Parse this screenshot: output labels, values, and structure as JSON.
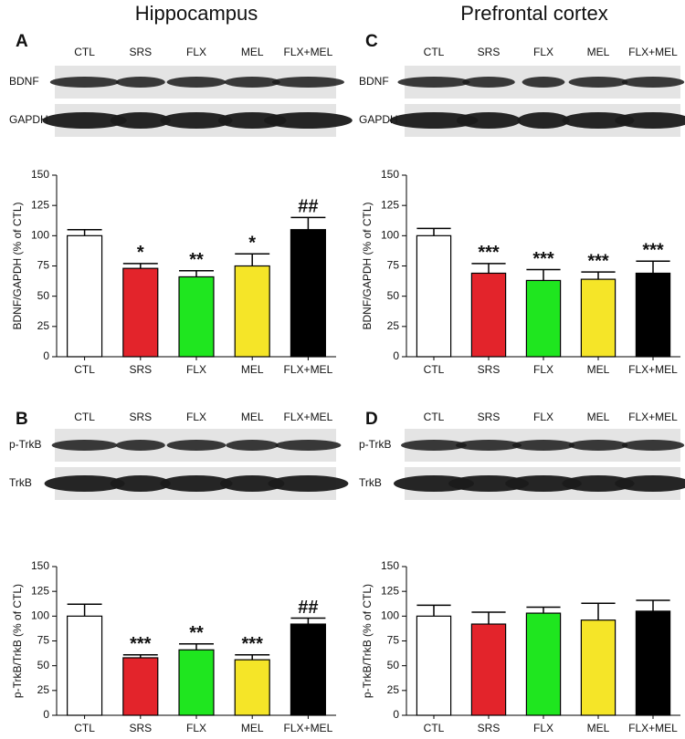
{
  "headings": [
    "Hippocampus",
    "Prefrontal cortex"
  ],
  "panels": [
    {
      "letter": "A",
      "lanes": [
        "CTL",
        "SRS",
        "FLX",
        "MEL",
        "FLX+MEL"
      ],
      "bands": [
        "BDNF",
        "GAPDH"
      ]
    },
    {
      "letter": "B",
      "lanes": [
        "CTL",
        "SRS",
        "FLX",
        "MEL",
        "FLX+MEL"
      ],
      "bands": [
        "p-TrkB",
        "TrkB"
      ]
    },
    {
      "letter": "C",
      "lanes": [
        "CTL",
        "SRS",
        "FLX",
        "MEL",
        "FLX+MEL"
      ],
      "bands": [
        "BDNF",
        "GAPDH"
      ]
    },
    {
      "letter": "D",
      "lanes": [
        "CTL",
        "SRS",
        "FLX",
        "MEL",
        "FLX+MEL"
      ],
      "bands": [
        "p-TrkB",
        "TrkB"
      ]
    }
  ],
  "chart_data": [
    {
      "type": "bar",
      "ylabel": "BDNF/GAPDH (% of CTL)",
      "categories": [
        "CTL",
        "SRS",
        "FLX",
        "MEL",
        "FLX+MEL"
      ],
      "values": [
        100,
        73,
        66,
        75,
        105
      ],
      "errors": [
        5,
        4,
        5,
        10,
        10
      ],
      "annotations": [
        "",
        "*",
        "**",
        "*",
        "##"
      ],
      "colors": [
        "#ffffff",
        "#e3242b",
        "#1fe61f",
        "#f5e528",
        "#000000"
      ],
      "ylim": [
        0,
        150
      ],
      "yticks": [
        0,
        25,
        50,
        75,
        100,
        125,
        150
      ]
    },
    {
      "type": "bar",
      "ylabel": "p-TrkB/TrkB (% of CTL)",
      "categories": [
        "CTL",
        "SRS",
        "FLX",
        "MEL",
        "FLX+MEL"
      ],
      "values": [
        100,
        58,
        66,
        56,
        92
      ],
      "errors": [
        12,
        3,
        6,
        5,
        6
      ],
      "annotations": [
        "",
        "***",
        "**",
        "***",
        "##"
      ],
      "colors": [
        "#ffffff",
        "#e3242b",
        "#1fe61f",
        "#f5e528",
        "#000000"
      ],
      "ylim": [
        0,
        150
      ],
      "yticks": [
        0,
        25,
        50,
        75,
        100,
        125,
        150
      ]
    },
    {
      "type": "bar",
      "ylabel": "BDNF/GAPDH (% of CTL)",
      "categories": [
        "CTL",
        "SRS",
        "FLX",
        "MEL",
        "FLX+MEL"
      ],
      "values": [
        100,
        69,
        63,
        64,
        69
      ],
      "errors": [
        6,
        8,
        9,
        6,
        10
      ],
      "annotations": [
        "",
        "***",
        "***",
        "***",
        "***"
      ],
      "colors": [
        "#ffffff",
        "#e3242b",
        "#1fe61f",
        "#f5e528",
        "#000000"
      ],
      "ylim": [
        0,
        150
      ],
      "yticks": [
        0,
        25,
        50,
        75,
        100,
        125,
        150
      ]
    },
    {
      "type": "bar",
      "ylabel": "p-TrkB/TrkB (% of CTL)",
      "categories": [
        "CTL",
        "SRS",
        "FLX",
        "MEL",
        "FLX+MEL"
      ],
      "values": [
        100,
        92,
        103,
        96,
        105
      ],
      "errors": [
        11,
        12,
        6,
        17,
        11
      ],
      "colors": [
        "#ffffff",
        "#e3242b",
        "#1fe61f",
        "#f5e528",
        "#000000"
      ],
      "ylim": [
        0,
        150
      ],
      "yticks": [
        0,
        25,
        50,
        75,
        100,
        125,
        150
      ]
    }
  ]
}
